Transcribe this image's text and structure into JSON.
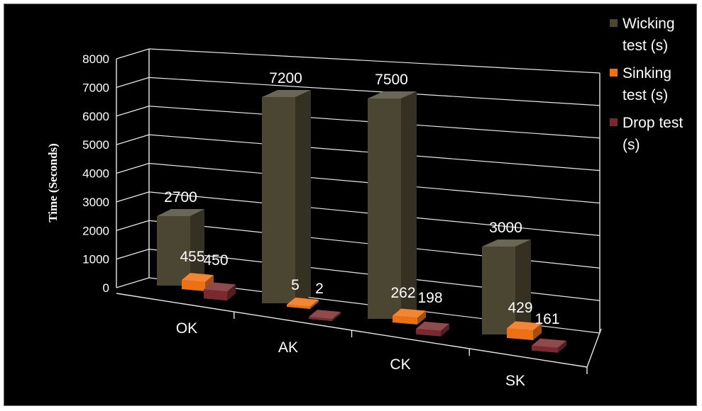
{
  "chart_data": {
    "type": "bar",
    "style": "3d-clustered-column",
    "categories": [
      "OK",
      "AK",
      "CK",
      "SK"
    ],
    "series": [
      {
        "name": "Wicking\ntest (s)",
        "values": [
          2700,
          7200,
          7500,
          3000
        ],
        "color": "#4a4632"
      },
      {
        "name": "Sinking\ntest (s)",
        "values": [
          455,
          5,
          262,
          429
        ],
        "color": "#ed7113"
      },
      {
        "name": "Drop test\n(s)",
        "values": [
          450,
          2,
          198,
          161
        ],
        "color": "#7a2a2e"
      }
    ],
    "data_labels": [
      [
        "2700",
        "7200",
        "7500",
        "3000"
      ],
      [
        "455",
        "5",
        "262",
        "429"
      ],
      [
        "450",
        "2",
        "198",
        "161"
      ]
    ],
    "ylabel": "Time (Seconds)",
    "xlabel": "",
    "title": "",
    "ylim": [
      0,
      8000
    ],
    "yticks": [
      "0",
      "1000",
      "2000",
      "3000",
      "4000",
      "5000",
      "6000",
      "7000",
      "8000"
    ],
    "grid": true,
    "legend_position": "right",
    "background": "#000000"
  }
}
